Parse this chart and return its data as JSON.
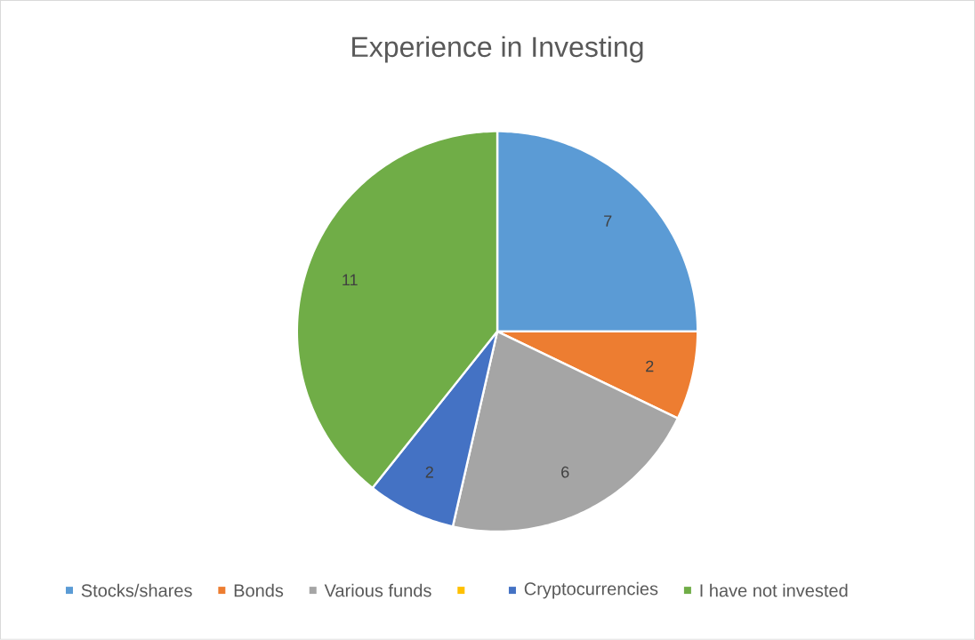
{
  "chart_data": {
    "type": "pie",
    "title": "Experience in Investing",
    "categories": [
      "Stocks/shares",
      "Bonds",
      "Various funds",
      null,
      "Cryptocurrencies",
      "I have not invested"
    ],
    "values": [
      7,
      2,
      6,
      0,
      2,
      11
    ],
    "colors": [
      "#5b9bd5",
      "#ed7d31",
      "#a5a5a5",
      "#ffc000",
      "#4472c4",
      "#70ad47"
    ],
    "value_labels": [
      "7",
      "2",
      "6",
      null,
      "2",
      "11"
    ],
    "legend": "bottom"
  }
}
